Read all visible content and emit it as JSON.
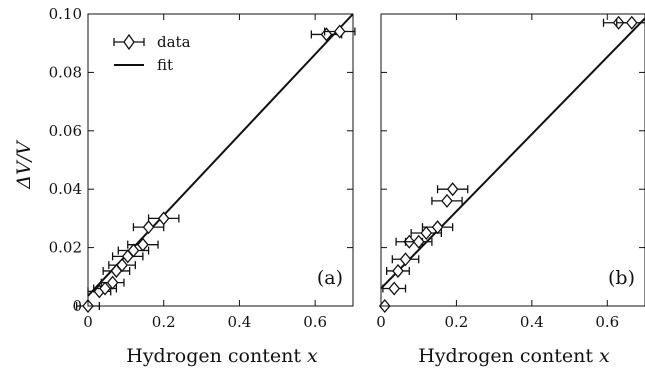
{
  "chart_data": [
    {
      "type": "scatter",
      "panel_label": "(a)",
      "xlabel_text": "Hydrogen content ",
      "xlabel_var": "x",
      "ylabel": "ΔV/V",
      "xlim": [
        0,
        0.7
      ],
      "ylim": [
        0,
        0.1
      ],
      "x_ticks": [
        "0",
        "0.2",
        "0.4",
        "0.6"
      ],
      "y_ticks": [
        "0",
        "0.02",
        "0.04",
        "0.06",
        "0.08",
        "0.10"
      ],
      "legend": {
        "position": "top-left",
        "data_label": "data",
        "fit_label": "fit"
      },
      "series": [
        {
          "kind": "data",
          "points": [
            {
              "x": 0.0,
              "y": 0.0,
              "xerr": 0.03
            },
            {
              "x": 0.03,
              "y": 0.005,
              "xerr": 0.03
            },
            {
              "x": 0.045,
              "y": 0.006,
              "xerr": 0.03
            },
            {
              "x": 0.065,
              "y": 0.008,
              "xerr": 0.03
            },
            {
              "x": 0.075,
              "y": 0.012,
              "xerr": 0.035
            },
            {
              "x": 0.09,
              "y": 0.014,
              "xerr": 0.035
            },
            {
              "x": 0.105,
              "y": 0.017,
              "xerr": 0.04
            },
            {
              "x": 0.12,
              "y": 0.019,
              "xerr": 0.04
            },
            {
              "x": 0.145,
              "y": 0.021,
              "xerr": 0.04
            },
            {
              "x": 0.16,
              "y": 0.027,
              "xerr": 0.04
            },
            {
              "x": 0.2,
              "y": 0.03,
              "xerr": 0.04
            },
            {
              "x": 0.63,
              "y": 0.093,
              "xerr": 0.04
            },
            {
              "x": 0.665,
              "y": 0.094,
              "xerr": 0.04
            }
          ]
        },
        {
          "kind": "fit",
          "x": [
            0.0,
            0.7
          ],
          "y": [
            0.0035,
            0.1
          ]
        }
      ]
    },
    {
      "type": "scatter",
      "panel_label": "(b)",
      "xlabel_text": "Hydrogen content ",
      "xlabel_var": "x",
      "xlim": [
        0,
        0.7
      ],
      "ylim": [
        0,
        0.1
      ],
      "x_ticks": [
        "0",
        "0.2",
        "0.4",
        "0.6"
      ],
      "series": [
        {
          "kind": "data",
          "points": [
            {
              "x": 0.01,
              "y": 0.0,
              "xerr": 0.0
            },
            {
              "x": 0.035,
              "y": 0.006,
              "xerr": 0.03
            },
            {
              "x": 0.045,
              "y": 0.012,
              "xerr": 0.03
            },
            {
              "x": 0.065,
              "y": 0.016,
              "xerr": 0.035
            },
            {
              "x": 0.075,
              "y": 0.022,
              "xerr": 0.035
            },
            {
              "x": 0.1,
              "y": 0.022,
              "xerr": 0.035
            },
            {
              "x": 0.12,
              "y": 0.025,
              "xerr": 0.04
            },
            {
              "x": 0.15,
              "y": 0.027,
              "xerr": 0.04
            },
            {
              "x": 0.175,
              "y": 0.036,
              "xerr": 0.04
            },
            {
              "x": 0.19,
              "y": 0.04,
              "xerr": 0.04
            },
            {
              "x": 0.63,
              "y": 0.097,
              "xerr": 0.04
            },
            {
              "x": 0.665,
              "y": 0.097,
              "xerr": 0.04
            }
          ]
        },
        {
          "kind": "fit",
          "x": [
            0.0,
            0.7
          ],
          "y": [
            0.006,
            0.0985
          ]
        }
      ]
    }
  ]
}
